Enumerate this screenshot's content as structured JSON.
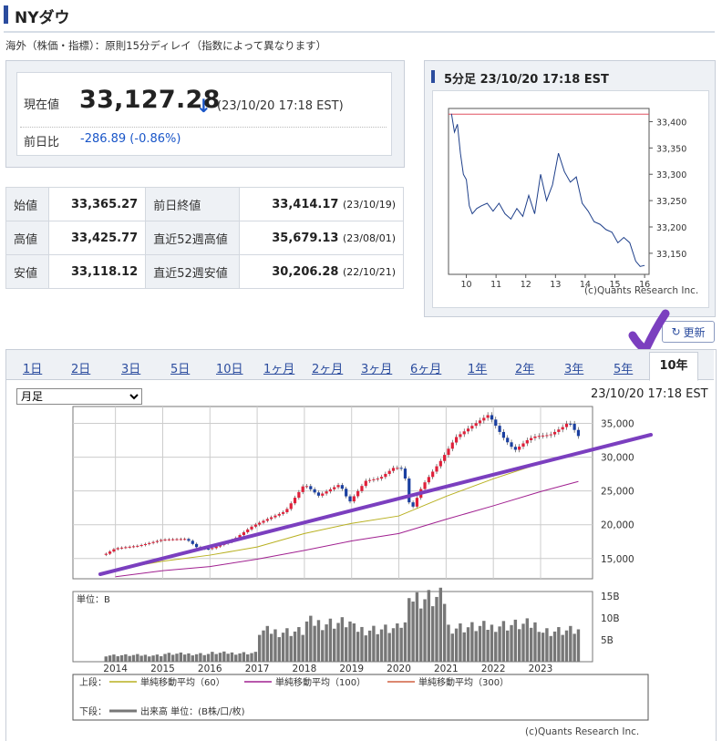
{
  "page": {
    "title": "NYダウ",
    "note": "海外（株価・指標）：原則15分ディレイ（指数によって異なります）"
  },
  "quote": {
    "current_label": "現在値",
    "current_value": "33,127.28",
    "arrow": "↓",
    "timestamp": "(23/10/20 17:18 EST)",
    "change_label": "前日比",
    "change_value": "-286.89 (-0.86%)",
    "down_color": "#1a56c8"
  },
  "stats": [
    {
      "label": "始値",
      "value": "33,365.27",
      "label2": "前日終値",
      "value2": "33,414.17",
      "date2": "(23/10/19)"
    },
    {
      "label": "高値",
      "value": "33,425.77",
      "label2": "直近52週高値",
      "value2": "35,679.13",
      "date2": "(23/08/01)"
    },
    {
      "label": "安値",
      "value": "33,118.12",
      "label2": "直近52週安値",
      "value2": "30,206.28",
      "date2": "(22/10/21)"
    }
  ],
  "mini_chart": {
    "title": "5分足 23/10/20 17:18 EST",
    "credit": "(c)Quants Research Inc.",
    "x_labels": [
      "10",
      "11",
      "12",
      "13",
      "14",
      "15",
      "16"
    ],
    "y_labels": [
      "33,400",
      "33,350",
      "33,300",
      "33,250",
      "33,200",
      "33,150"
    ]
  },
  "refresh_label": "更新",
  "tabs": [
    "1日",
    "2日",
    "3日",
    "5日",
    "10日",
    "1ヶ月",
    "2ヶ月",
    "3ヶ月",
    "6ヶ月",
    "1年",
    "2年",
    "3年",
    "5年",
    "10年"
  ],
  "active_tab": "10年",
  "period_select": "月足",
  "chart_timestamp": "23/10/20 17:18 EST",
  "main_chart": {
    "y_labels": [
      "35,000",
      "30,000",
      "25,000",
      "20,000",
      "15,000"
    ],
    "x_labels": [
      "2014",
      "2015",
      "2016",
      "2017",
      "2018",
      "2019",
      "2020",
      "2021",
      "2022",
      "2023"
    ],
    "vol_unit": "単位：B",
    "vol_labels": [
      "15B",
      "10B",
      "5B"
    ],
    "legend_upper": "上段：",
    "legend_lower": "下段：",
    "ma60": "単純移動平均（60）",
    "ma100": "単純移動平均（100）",
    "ma300": "単純移動平均（300）",
    "volume_label": "出来高 単位：(B株/口/枚)",
    "credit": "(c)Quants Research Inc.",
    "colors": {
      "up": "#e0203a",
      "down": "#1a3fa0",
      "ma60": "#b8b020",
      "ma100": "#a02090",
      "ma300": "#d06040",
      "trend": "#7b3fbf"
    }
  },
  "chart_data": [
    {
      "type": "line",
      "title": "5分足 23/10/20 17:18 EST",
      "x": [
        9.5,
        9.6,
        9.7,
        9.8,
        9.9,
        10.0,
        10.1,
        10.2,
        10.35,
        10.5,
        10.7,
        10.9,
        11.1,
        11.3,
        11.5,
        11.7,
        11.9,
        12.1,
        12.3,
        12.5,
        12.7,
        12.9,
        13.1,
        13.3,
        13.5,
        13.7,
        13.9,
        14.1,
        14.3,
        14.5,
        14.7,
        14.9,
        15.1,
        15.3,
        15.5,
        15.7,
        15.85,
        16.0
      ],
      "values": [
        33415,
        33380,
        33395,
        33340,
        33300,
        33290,
        33240,
        33225,
        33235,
        33240,
        33245,
        33230,
        33245,
        33225,
        33215,
        33235,
        33220,
        33260,
        33225,
        33300,
        33250,
        33280,
        33340,
        33305,
        33285,
        33295,
        33245,
        33230,
        33210,
        33205,
        33195,
        33190,
        33170,
        33180,
        33170,
        33135,
        33125,
        33127
      ],
      "ylim": [
        33110,
        33425
      ],
      "reference_line": 33414.17
    },
    {
      "type": "line",
      "title": "",
      "series": [
        {
          "name": "",
          "x": [
            2013.75,
            2014.0,
            2014.5,
            2015.0,
            2015.5,
            2015.75,
            2016.0,
            2016.5,
            2016.9,
            2017.2,
            2017.6,
            2018.0,
            2018.3,
            2018.75,
            2018.95,
            2019.3,
            2019.6,
            2019.9,
            2020.1,
            2020.25,
            2020.5,
            2020.9,
            2021.2,
            2021.5,
            2021.9,
            2022.2,
            2022.45,
            2022.75,
            2022.9,
            2023.2,
            2023.5,
            2023.6,
            2023.8
          ],
          "values": [
            15500,
            16500,
            16900,
            17800,
            17900,
            16500,
            16400,
            17800,
            19800,
            20800,
            22000,
            26000,
            24300,
            26000,
            23300,
            26500,
            26900,
            28500,
            28250,
            21900,
            25800,
            29600,
            32900,
            34400,
            36300,
            33000,
            31000,
            32700,
            33100,
            33300,
            34600,
            35300,
            33127
          ]
        },
        {
          "name": "単純移動平均（60）",
          "x": [
            2014,
            2015,
            2016,
            2017,
            2018,
            2019,
            2020,
            2021,
            2022,
            2023,
            2023.8
          ],
          "values": [
            13400,
            14600,
            15500,
            16700,
            18700,
            20200,
            21300,
            24200,
            26800,
            29100,
            30700
          ]
        },
        {
          "name": "単純移動平均（100）",
          "x": [
            2014,
            2015,
            2016,
            2017,
            2018,
            2019,
            2020,
            2021,
            2022,
            2023,
            2023.8
          ],
          "values": [
            12300,
            13200,
            13800,
            14900,
            16200,
            17600,
            18700,
            20800,
            22800,
            24900,
            26400
          ]
        }
      ],
      "ylim": [
        12000,
        37500
      ],
      "volume_series": {
        "name": "出来高",
        "unit": "B",
        "x": [
          2014,
          2015,
          2016,
          2017,
          2018,
          2019,
          2020,
          2020.2,
          2021,
          2022,
          2023,
          2023.8
        ],
        "values": [
          1.5,
          1.8,
          2.0,
          7.0,
          9.0,
          7.5,
          8.5,
          14.5,
          8.0,
          8.5,
          7.0,
          3.5
        ]
      }
    }
  ]
}
